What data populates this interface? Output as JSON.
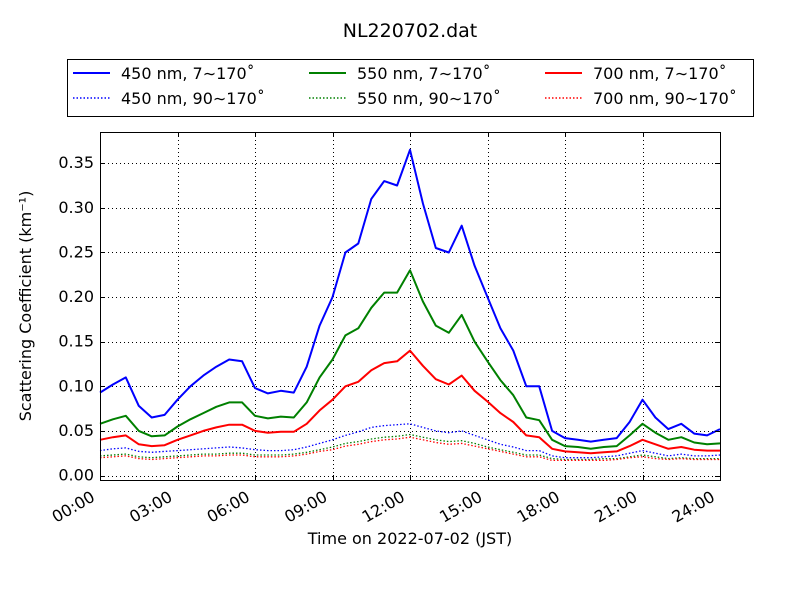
{
  "chart_data": {
    "type": "line",
    "title": "NL220702.dat",
    "xlabel": "Time on 2022-07-02 (JST)",
    "ylabel": "Scattering Coefficient (km⁻¹)",
    "xlim": [
      0,
      24
    ],
    "ylim": [
      -0.005,
      0.385
    ],
    "x_ticks": [
      0,
      3,
      6,
      9,
      12,
      15,
      18,
      21,
      24
    ],
    "x_tick_labels": [
      "00:00",
      "03:00",
      "06:00",
      "09:00",
      "12:00",
      "15:00",
      "18:00",
      "21:00",
      "24:00"
    ],
    "y_ticks": [
      0.0,
      0.05,
      0.1,
      0.15,
      0.2,
      0.25,
      0.3,
      0.35
    ],
    "y_tick_labels": [
      "0.00",
      "0.05",
      "0.10",
      "0.15",
      "0.20",
      "0.25",
      "0.30",
      "0.35"
    ],
    "grid": true,
    "legend_position": "top, above plot, 3 columns",
    "x": [
      0,
      0.5,
      1,
      1.5,
      2,
      2.5,
      3,
      3.5,
      4,
      4.5,
      5,
      5.5,
      6,
      6.5,
      7,
      7.5,
      8,
      8.5,
      9,
      9.5,
      10,
      10.5,
      11,
      11.5,
      12,
      12.5,
      13,
      13.5,
      14,
      14.5,
      15,
      15.5,
      16,
      16.5,
      17,
      17.5,
      18,
      18.5,
      19,
      19.5,
      20,
      20.5,
      21,
      21.5,
      22,
      22.5,
      23,
      23.5,
      24
    ],
    "series": [
      {
        "name": "450 nm, 7∼170˚",
        "color": "#0000ff",
        "style": "solid",
        "values": [
          0.093,
          0.102,
          0.11,
          0.078,
          0.065,
          0.068,
          0.085,
          0.1,
          0.112,
          0.122,
          0.13,
          0.128,
          0.098,
          0.092,
          0.095,
          0.093,
          0.122,
          0.168,
          0.2,
          0.25,
          0.26,
          0.31,
          0.33,
          0.325,
          0.365,
          0.305,
          0.255,
          0.25,
          0.28,
          0.235,
          0.2,
          0.165,
          0.14,
          0.1,
          0.1,
          0.05,
          0.042,
          0.04,
          0.038,
          0.04,
          0.042,
          0.06,
          0.085,
          0.065,
          0.052,
          0.058,
          0.047,
          0.045,
          0.052
        ]
      },
      {
        "name": "450 nm, 90∼170˚",
        "color": "#0000ff",
        "style": "dotted",
        "values": [
          0.028,
          0.03,
          0.031,
          0.027,
          0.026,
          0.027,
          0.028,
          0.029,
          0.03,
          0.031,
          0.032,
          0.031,
          0.029,
          0.028,
          0.028,
          0.029,
          0.032,
          0.036,
          0.04,
          0.045,
          0.049,
          0.054,
          0.056,
          0.057,
          0.058,
          0.054,
          0.05,
          0.048,
          0.05,
          0.045,
          0.04,
          0.035,
          0.032,
          0.028,
          0.028,
          0.022,
          0.02,
          0.02,
          0.02,
          0.021,
          0.022,
          0.025,
          0.028,
          0.025,
          0.022,
          0.024,
          0.022,
          0.022,
          0.023
        ]
      },
      {
        "name": "550 nm, 7∼170˚",
        "color": "#008000",
        "style": "solid",
        "values": [
          0.058,
          0.063,
          0.067,
          0.05,
          0.044,
          0.045,
          0.055,
          0.063,
          0.07,
          0.077,
          0.082,
          0.082,
          0.067,
          0.064,
          0.066,
          0.065,
          0.082,
          0.11,
          0.13,
          0.157,
          0.165,
          0.188,
          0.205,
          0.205,
          0.23,
          0.195,
          0.168,
          0.16,
          0.18,
          0.15,
          0.128,
          0.107,
          0.09,
          0.065,
          0.062,
          0.04,
          0.033,
          0.032,
          0.03,
          0.032,
          0.033,
          0.045,
          0.058,
          0.048,
          0.04,
          0.043,
          0.037,
          0.035,
          0.036
        ]
      },
      {
        "name": "550 nm, 90∼170˚",
        "color": "#008000",
        "style": "dotted",
        "values": [
          0.022,
          0.023,
          0.024,
          0.021,
          0.02,
          0.021,
          0.022,
          0.023,
          0.024,
          0.024,
          0.025,
          0.025,
          0.023,
          0.023,
          0.023,
          0.024,
          0.026,
          0.029,
          0.032,
          0.036,
          0.038,
          0.041,
          0.043,
          0.044,
          0.046,
          0.043,
          0.04,
          0.038,
          0.039,
          0.036,
          0.032,
          0.029,
          0.026,
          0.023,
          0.023,
          0.019,
          0.018,
          0.018,
          0.018,
          0.019,
          0.019,
          0.021,
          0.023,
          0.021,
          0.019,
          0.02,
          0.019,
          0.019,
          0.019
        ]
      },
      {
        "name": "700 nm, 7∼170˚",
        "color": "#ff0000",
        "style": "solid",
        "values": [
          0.04,
          0.043,
          0.045,
          0.035,
          0.033,
          0.034,
          0.04,
          0.045,
          0.05,
          0.054,
          0.057,
          0.057,
          0.05,
          0.048,
          0.049,
          0.049,
          0.058,
          0.073,
          0.085,
          0.1,
          0.105,
          0.118,
          0.126,
          0.128,
          0.14,
          0.123,
          0.108,
          0.102,
          0.112,
          0.095,
          0.083,
          0.07,
          0.06,
          0.045,
          0.043,
          0.03,
          0.027,
          0.026,
          0.025,
          0.026,
          0.027,
          0.033,
          0.04,
          0.035,
          0.03,
          0.032,
          0.029,
          0.028,
          0.028
        ]
      },
      {
        "name": "700 nm, 90∼170˚",
        "color": "#ff0000",
        "style": "dotted",
        "values": [
          0.02,
          0.021,
          0.022,
          0.019,
          0.018,
          0.019,
          0.02,
          0.021,
          0.022,
          0.022,
          0.023,
          0.023,
          0.021,
          0.021,
          0.021,
          0.022,
          0.024,
          0.027,
          0.029,
          0.033,
          0.035,
          0.038,
          0.04,
          0.041,
          0.043,
          0.04,
          0.037,
          0.035,
          0.036,
          0.033,
          0.03,
          0.027,
          0.024,
          0.021,
          0.021,
          0.017,
          0.017,
          0.017,
          0.017,
          0.017,
          0.018,
          0.02,
          0.021,
          0.019,
          0.018,
          0.019,
          0.018,
          0.018,
          0.018
        ]
      }
    ]
  }
}
